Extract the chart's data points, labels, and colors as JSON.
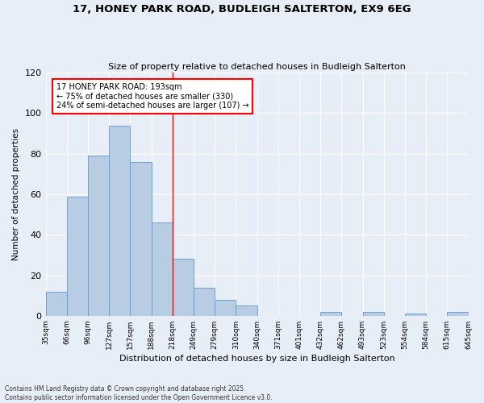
{
  "title": "17, HONEY PARK ROAD, BUDLEIGH SALTERTON, EX9 6EG",
  "subtitle": "Size of property relative to detached houses in Budleigh Salterton",
  "xlabel": "Distribution of detached houses by size in Budleigh Salterton",
  "ylabel": "Number of detached properties",
  "annotation_line1": "17 HONEY PARK ROAD: 193sqm",
  "annotation_line2": "← 75% of detached houses are smaller (330)",
  "annotation_line3": "24% of semi-detached houses are larger (107) →",
  "bar_values": [
    12,
    59,
    79,
    94,
    76,
    46,
    28,
    14,
    8,
    5,
    0,
    0,
    0,
    2,
    0,
    2,
    0,
    1,
    0,
    2
  ],
  "categories": [
    "35sqm",
    "66sqm",
    "96sqm",
    "127sqm",
    "157sqm",
    "188sqm",
    "218sqm",
    "249sqm",
    "279sqm",
    "310sqm",
    "340sqm",
    "371sqm",
    "401sqm",
    "432sqm",
    "462sqm",
    "493sqm",
    "523sqm",
    "554sqm",
    "584sqm",
    "615sqm",
    "645sqm"
  ],
  "bar_color": "#b8cce4",
  "bar_edge_color": "#5b9bd5",
  "vline_x": 5.5,
  "vline_color": "red",
  "ylim": [
    0,
    120
  ],
  "yticks": [
    0,
    20,
    40,
    60,
    80,
    100,
    120
  ],
  "background_color": "#e8eef8",
  "grid_color": "#ffffff",
  "footer_line1": "Contains HM Land Registry data © Crown copyright and database right 2025.",
  "footer_line2": "Contains public sector information licensed under the Open Government Licence v3.0."
}
